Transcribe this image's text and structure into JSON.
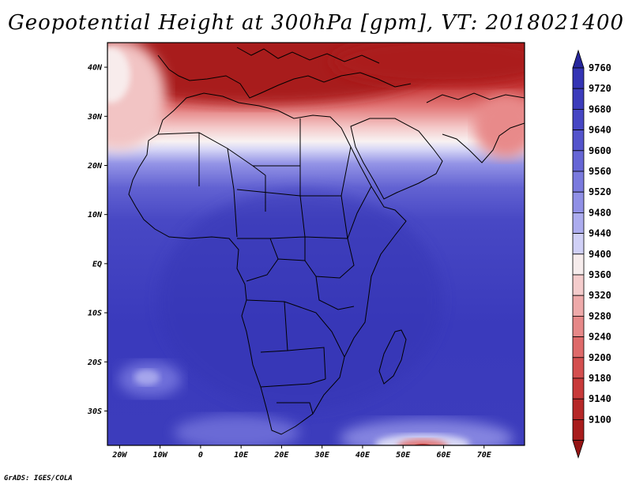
{
  "title": "Geopotential Height at 300hPa [gpm], VT: 2018021400",
  "credit": "GrADS: IGES/COLA",
  "map": {
    "lon_range": [
      -23,
      80
    ],
    "lat_range": [
      -37,
      45
    ],
    "x_ticks": [
      "20W",
      "10W",
      "0",
      "10E",
      "20E",
      "30E",
      "40E",
      "50E",
      "60E",
      "70E"
    ],
    "y_ticks": [
      "40N",
      "30N",
      "20N",
      "10N",
      "EQ",
      "10S",
      "20S",
      "30S"
    ]
  },
  "colorbar": {
    "levels": [
      "9760",
      "9720",
      "9680",
      "9640",
      "9600",
      "9560",
      "9520",
      "9480",
      "9440",
      "9400",
      "9360",
      "9320",
      "9280",
      "9240",
      "9200",
      "9180",
      "9140",
      "9100"
    ],
    "colors": [
      "#3434b4",
      "#3c3cbc",
      "#4646c4",
      "#5454cc",
      "#6666d6",
      "#7a7ade",
      "#9090e6",
      "#acacee",
      "#d0d0f6",
      "#f6ecec",
      "#f4cccc",
      "#eeaaaa",
      "#e68888",
      "#de6a6a",
      "#d44f4f",
      "#c83a3a",
      "#b62828",
      "#a81c1c"
    ],
    "top_arrow_color": "#26269c",
    "bottom_arrow_color": "#951414"
  }
}
